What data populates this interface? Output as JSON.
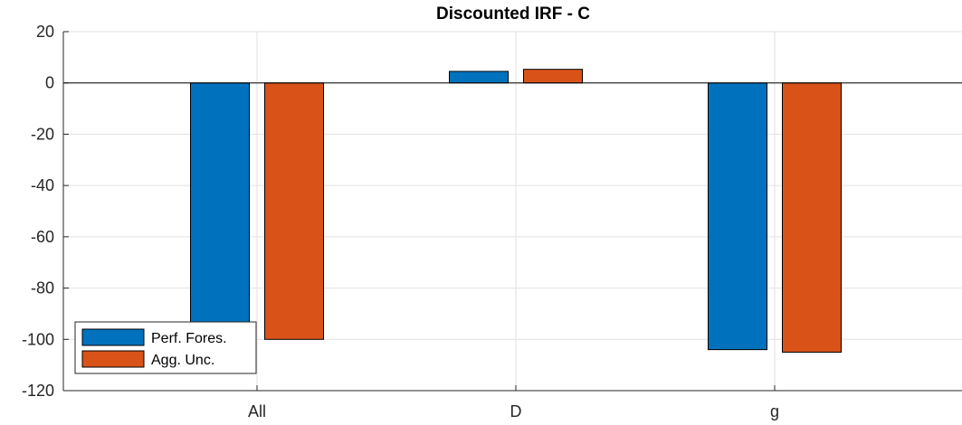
{
  "chart_data": {
    "type": "bar",
    "title": "Discounted IRF - C",
    "xlabel": "",
    "ylabel": "",
    "categories": [
      "All",
      "D",
      "g"
    ],
    "series": [
      {
        "name": "Perf. Fores.",
        "color": "#0072BD",
        "values": [
          -94,
          4.5,
          -104
        ]
      },
      {
        "name": "Agg. Unc.",
        "color": "#D95319",
        "values": [
          -100,
          5.3,
          -105
        ]
      }
    ],
    "ylim": [
      -120,
      20
    ],
    "yticks": [
      20,
      0,
      -20,
      -40,
      -60,
      -80,
      -100,
      -120
    ],
    "grid": true,
    "legend_position": "bottom-left"
  }
}
